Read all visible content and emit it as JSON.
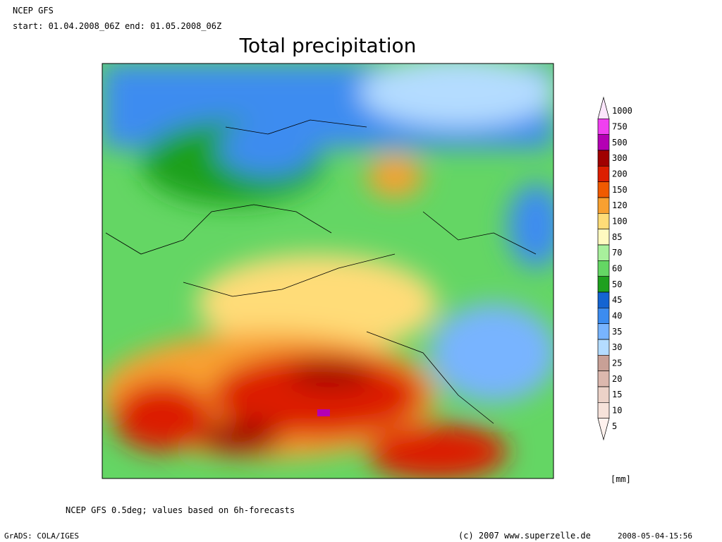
{
  "header": {
    "model": "NCEP GFS",
    "period": "start: 01.04.2008_06Z end: 01.05.2008_06Z"
  },
  "title": "Total precipitation",
  "legend": {
    "levels": [
      {
        "label": 1000,
        "color": "#fde6fd"
      },
      {
        "label": 750,
        "color": "#f040f0"
      },
      {
        "label": 500,
        "color": "#b400b4"
      },
      {
        "label": 300,
        "color": "#a00000"
      },
      {
        "label": 200,
        "color": "#dc1e00"
      },
      {
        "label": 150,
        "color": "#f05a00"
      },
      {
        "label": 120,
        "color": "#f8a030"
      },
      {
        "label": 100,
        "color": "#ffdc78"
      },
      {
        "label": 85,
        "color": "#fffac0"
      },
      {
        "label": 70,
        "color": "#a8f09c"
      },
      {
        "label": 60,
        "color": "#64d664"
      },
      {
        "label": 50,
        "color": "#1ea01e"
      },
      {
        "label": 45,
        "color": "#1464d2"
      },
      {
        "label": 40,
        "color": "#3c8cf0"
      },
      {
        "label": 35,
        "color": "#78b4ff"
      },
      {
        "label": 30,
        "color": "#b4dcff"
      },
      {
        "label": 25,
        "color": "#c8a096"
      },
      {
        "label": 20,
        "color": "#dcb8ae"
      },
      {
        "label": 15,
        "color": "#ecd2c8"
      },
      {
        "label": 10,
        "color": "#f6e2da"
      },
      {
        "label": 5,
        "color": "#fff2ee"
      }
    ],
    "unit": "[mm]"
  },
  "footer": {
    "note": "NCEP GFS 0.5deg; values based on 6h-forecasts",
    "software": "GrADS: COLA/IGES",
    "copyright": "(c) 2007 www.superzelle.de",
    "timestamp": "2008-05-04-15:56"
  }
}
